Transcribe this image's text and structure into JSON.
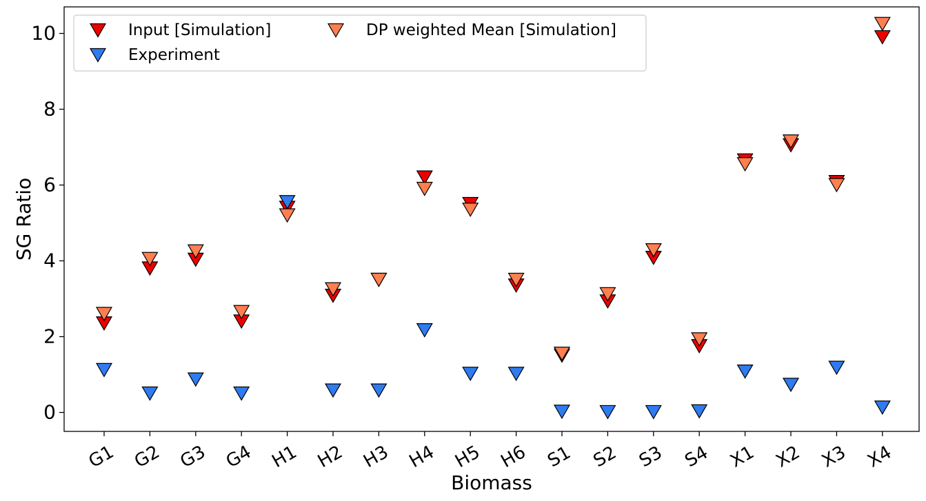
{
  "chart_data": {
    "type": "scatter",
    "title": "",
    "xlabel": "Biomass",
    "ylabel": "SG Ratio",
    "categories": [
      "G1",
      "G2",
      "G3",
      "G4",
      "H1",
      "H2",
      "H3",
      "H4",
      "H5",
      "H6",
      "S1",
      "S2",
      "S3",
      "S4",
      "X1",
      "X2",
      "X3",
      "X4"
    ],
    "ylim": [
      -0.5,
      10.7
    ],
    "yticks": [
      0,
      2,
      4,
      6,
      8,
      10
    ],
    "grid": false,
    "legend_position": "top-left",
    "marker": "downward-triangle",
    "series": [
      {
        "name": "Input [Simulation]",
        "color": "#ee0000",
        "values": [
          2.35,
          3.8,
          4.03,
          2.4,
          5.4,
          3.08,
          3.5,
          6.2,
          5.5,
          3.35,
          1.5,
          2.93,
          4.08,
          1.75,
          6.65,
          7.05,
          6.08,
          9.9
        ]
      },
      {
        "name": "Experiment",
        "color": "#2f7bf0",
        "values": [
          1.12,
          0.5,
          0.87,
          0.5,
          5.55,
          0.58,
          0.58,
          2.17,
          1.02,
          1.02,
          0.02,
          0.01,
          0.01,
          0.03,
          1.08,
          0.73,
          1.18,
          0.13
        ]
      },
      {
        "name": "DP weighted Mean [Simulation]",
        "color": "#ff7f50",
        "values": [
          2.6,
          4.05,
          4.25,
          2.65,
          5.2,
          3.25,
          3.5,
          5.9,
          5.35,
          3.5,
          1.55,
          3.12,
          4.28,
          1.93,
          6.55,
          7.15,
          6.0,
          10.25
        ]
      }
    ]
  }
}
